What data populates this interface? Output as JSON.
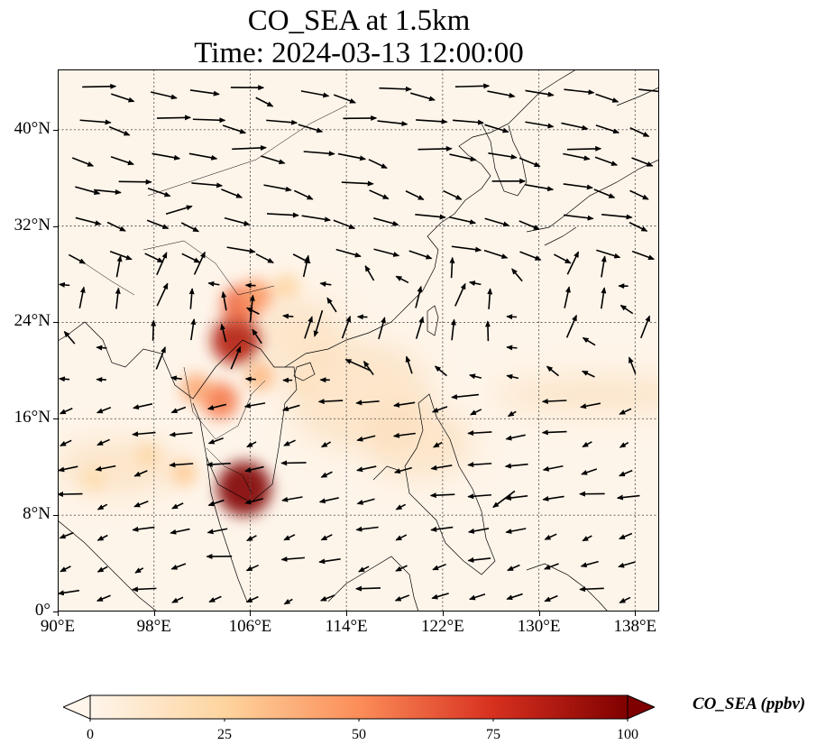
{
  "title": {
    "line1": "CO_SEA at 1.5km",
    "line2": "Time: 2024-03-13 12:00:00"
  },
  "map": {
    "extent": {
      "lon_min": 90,
      "lon_max": 140,
      "lat_min": 0,
      "lat_max": 45
    },
    "gridlines": "dotted",
    "lat_ticks": [
      {
        "value": 0,
        "label": "0°"
      },
      {
        "value": 8,
        "label": "8°N"
      },
      {
        "value": 16,
        "label": "16°N"
      },
      {
        "value": 24,
        "label": "24°N"
      },
      {
        "value": 32,
        "label": "32°N"
      },
      {
        "value": 40,
        "label": "40°N"
      }
    ],
    "lon_ticks": [
      {
        "value": 90,
        "label": "90°E"
      },
      {
        "value": 98,
        "label": "98°E"
      },
      {
        "value": 106,
        "label": "106°E"
      },
      {
        "value": 114,
        "label": "114°E"
      },
      {
        "value": 122,
        "label": "122°E"
      },
      {
        "value": 130,
        "label": "130°E"
      },
      {
        "value": 138,
        "label": "138°E"
      }
    ],
    "hotspots_ppbv": [
      {
        "lon": 105.5,
        "lat": 10.2,
        "value": 100
      },
      {
        "lon": 104.8,
        "lat": 22.5,
        "value": 85
      },
      {
        "lon": 105.2,
        "lat": 25.5,
        "value": 60
      },
      {
        "lon": 106.5,
        "lat": 26.2,
        "value": 45
      },
      {
        "lon": 103.5,
        "lat": 17.5,
        "value": 55
      },
      {
        "lon": 101.5,
        "lat": 18.5,
        "value": 40
      },
      {
        "lon": 106.8,
        "lat": 19.5,
        "value": 35
      },
      {
        "lon": 100.5,
        "lat": 11.5,
        "value": 28
      },
      {
        "lon": 97.5,
        "lat": 13.0,
        "value": 22
      },
      {
        "lon": 93.0,
        "lat": 11.0,
        "value": 20
      },
      {
        "lon": 109.0,
        "lat": 27.0,
        "value": 25
      },
      {
        "lon": 110.5,
        "lat": 19.0,
        "value": 15
      }
    ],
    "wind_vectors_sample": [
      {
        "lon": 93,
        "lat": 35,
        "u": 1.0,
        "v": -0.1
      },
      {
        "lon": 99,
        "lat": 33,
        "u": 1.0,
        "v": 0.3
      },
      {
        "lon": 106,
        "lat": 24,
        "u": 0.1,
        "v": 1.0
      },
      {
        "lon": 112,
        "lat": 25,
        "u": -0.3,
        "v": -1.0
      },
      {
        "lon": 116,
        "lat": 20,
        "u": -0.9,
        "v": 0.4
      },
      {
        "lon": 125,
        "lat": 18,
        "u": -1.0,
        "v": -0.1
      },
      {
        "lon": 132,
        "lat": 38,
        "u": 1.0,
        "v": -0.2
      },
      {
        "lon": 128,
        "lat": 10,
        "u": -0.8,
        "v": -0.6
      }
    ]
  },
  "colorbar": {
    "title": "CO_SEA (ppbv)",
    "min": 0,
    "max": 100,
    "extend": "both",
    "colors": [
      "#fff5eb",
      "#fdd49e",
      "#fc8d59",
      "#d7301f",
      "#7f0000"
    ],
    "ticks": [
      {
        "value": 0,
        "label": "0"
      },
      {
        "value": 25,
        "label": "25"
      },
      {
        "value": 50,
        "label": "50"
      },
      {
        "value": 75,
        "label": "75"
      },
      {
        "value": 100,
        "label": "100"
      }
    ]
  }
}
